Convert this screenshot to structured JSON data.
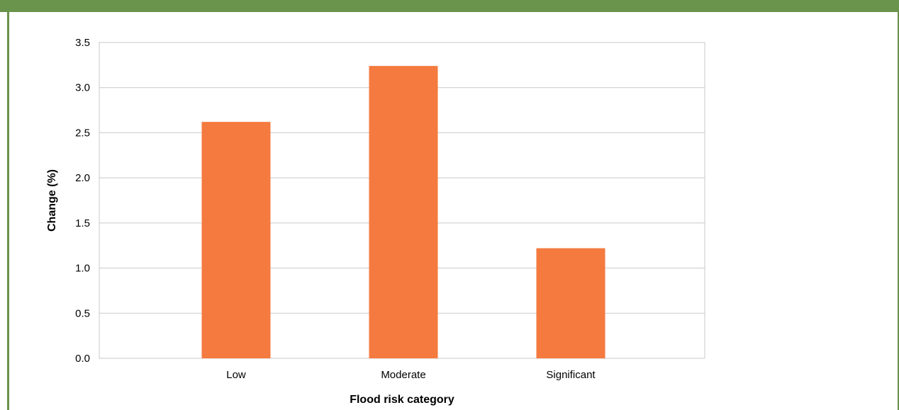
{
  "colors": {
    "frame": "#6a934b",
    "bar": "#f47a3f",
    "grid": "#c9c9c9"
  },
  "chart_data": {
    "type": "bar",
    "categories": [
      "Low",
      "Moderate",
      "Significant"
    ],
    "values": [
      2.62,
      3.24,
      1.22
    ],
    "xlabel": "Flood risk category",
    "ylabel": "Change (%)",
    "ylim": [
      0,
      3.5
    ],
    "yticks": [
      "0.0",
      "0.5",
      "1.0",
      "1.5",
      "2.0",
      "2.5",
      "3.0",
      "3.5"
    ],
    "grid": true,
    "legend": "none"
  }
}
